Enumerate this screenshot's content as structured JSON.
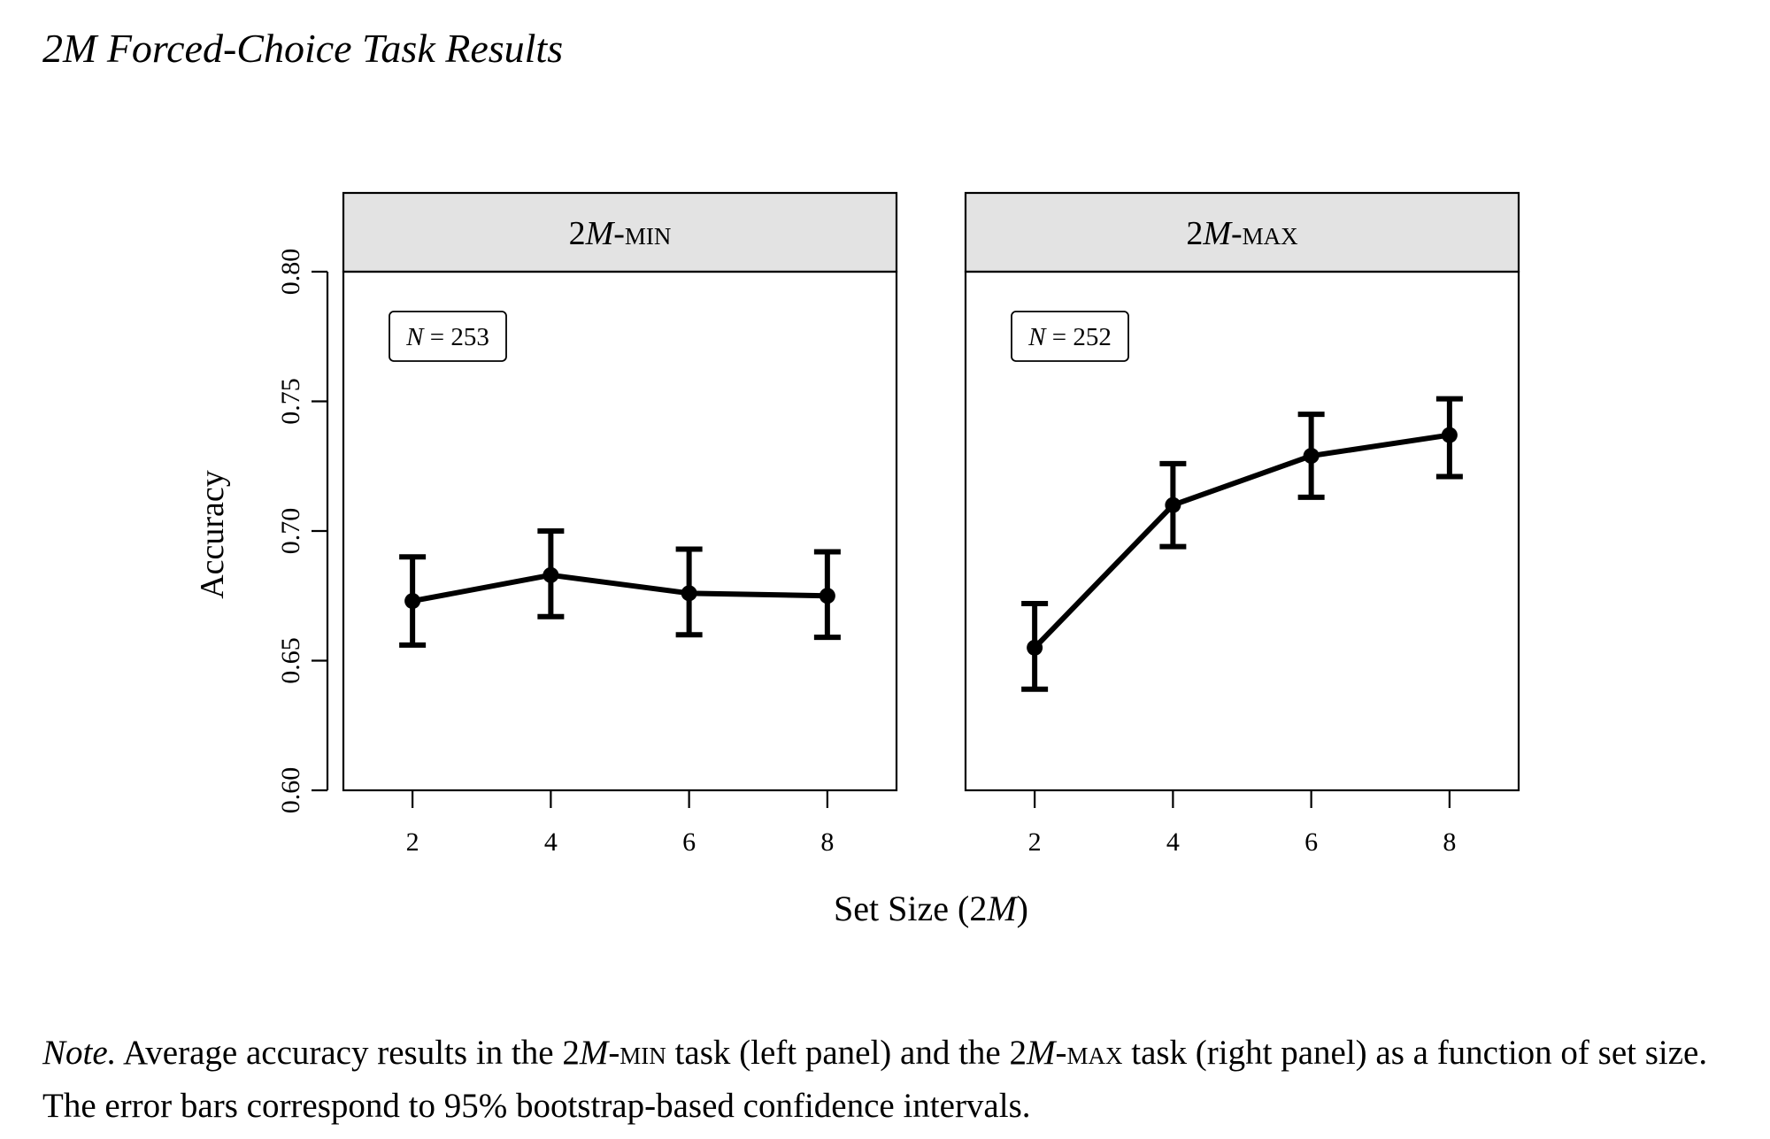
{
  "title": "2M Forced-Choice Task Results",
  "chart_data": {
    "type": "line",
    "ylabel": "Accuracy",
    "xlabel": "Set Size (2M)",
    "ylim": [
      0.6,
      0.8
    ],
    "yticks": [
      "0.60",
      "0.65",
      "0.70",
      "0.75",
      "0.80"
    ],
    "x": [
      2,
      4,
      6,
      8
    ],
    "xticks": [
      "2",
      "4",
      "6",
      "8"
    ],
    "grid": false,
    "error_bars": "95% bootstrap-based confidence intervals",
    "panels": [
      {
        "label": "2M-MIN",
        "n_label": "N = 253",
        "series": [
          {
            "values": [
              0.673,
              0.683,
              0.676,
              0.675
            ],
            "ci_low": [
              0.656,
              0.667,
              0.66,
              0.659
            ],
            "ci_high": [
              0.69,
              0.7,
              0.693,
              0.692
            ]
          }
        ]
      },
      {
        "label": "2M-MAX",
        "n_label": "N = 252",
        "series": [
          {
            "values": [
              0.655,
              0.71,
              0.729,
              0.737
            ],
            "ci_low": [
              0.639,
              0.694,
              0.713,
              0.721
            ],
            "ci_high": [
              0.672,
              0.726,
              0.745,
              0.751
            ]
          }
        ]
      }
    ]
  },
  "note": {
    "lead": "Note.",
    "p1": " Average accuracy results in the ",
    "task1_num": "2",
    "task1_var": "M",
    "task1_suffix": "-min",
    "p2": " task (left panel) and the ",
    "task2_num": "2",
    "task2_var": "M",
    "task2_suffix": "-max",
    "p3": " task (right panel) as a function of set size. The error bars correspond to 95% bootstrap-based confidence intervals."
  }
}
